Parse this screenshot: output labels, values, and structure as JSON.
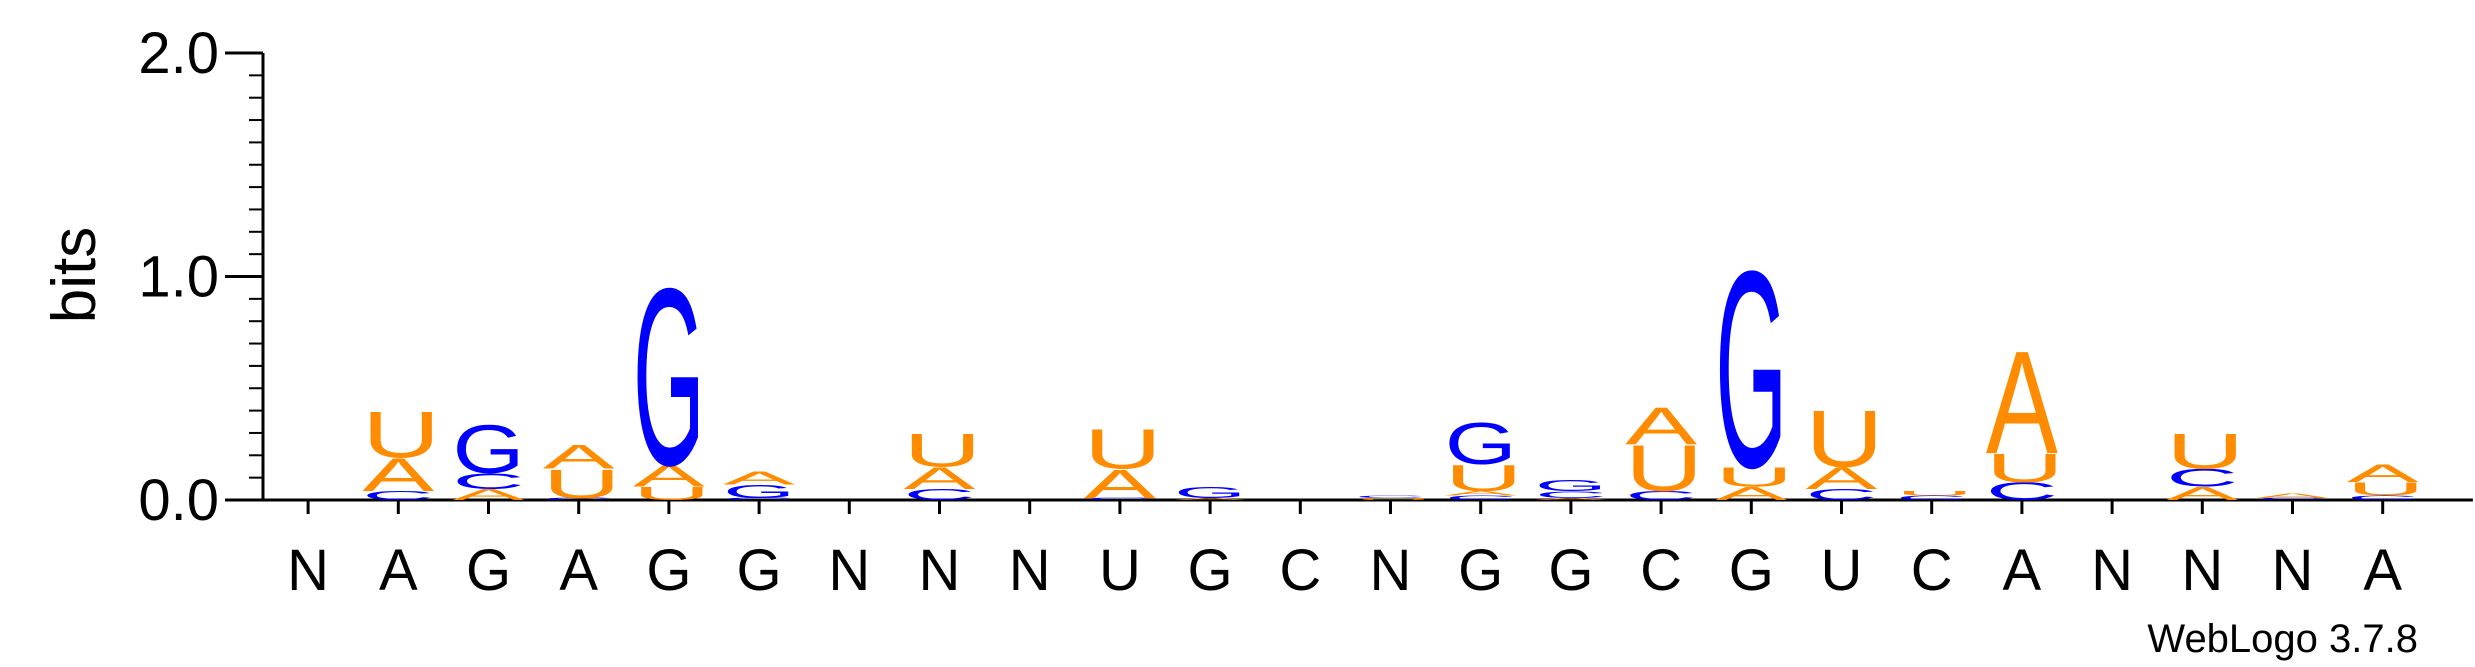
{
  "chart_data": {
    "type": "sequence_logo",
    "ylabel": "bits",
    "ylim": [
      0,
      2.0
    ],
    "yticks": [
      {
        "value": 0.0,
        "label": "0.0"
      },
      {
        "value": 1.0,
        "label": "1.0"
      },
      {
        "value": 2.0,
        "label": "2.0"
      }
    ],
    "positions": [
      "N",
      "A",
      "G",
      "A",
      "G",
      "G",
      "N",
      "N",
      "N",
      "U",
      "G",
      "C",
      "N",
      "G",
      "G",
      "C",
      "G",
      "U",
      "C",
      "A",
      "N",
      "N",
      "N",
      "A"
    ],
    "stacks": [
      [],
      [
        {
          "l": "C",
          "h": 0.04
        },
        {
          "l": "A",
          "h": 0.15
        },
        {
          "l": "U",
          "h": 0.21
        }
      ],
      [
        {
          "l": "A",
          "h": 0.05
        },
        {
          "l": "C",
          "h": 0.07
        },
        {
          "l": "G",
          "h": 0.22
        }
      ],
      [
        {
          "l": "C",
          "h": 0.01
        },
        {
          "l": "U",
          "h": 0.13
        },
        {
          "l": "A",
          "h": 0.11
        }
      ],
      [
        {
          "l": "U",
          "h": 0.06
        },
        {
          "l": "A",
          "h": 0.1
        },
        {
          "l": "G",
          "h": 0.81
        }
      ],
      [
        {
          "l": "C",
          "h": 0.01
        },
        {
          "l": "G",
          "h": 0.06
        },
        {
          "l": "A",
          "h": 0.06
        }
      ],
      [],
      [
        {
          "l": "C",
          "h": 0.05
        },
        {
          "l": "A",
          "h": 0.1
        },
        {
          "l": "U",
          "h": 0.15
        }
      ],
      [],
      [
        {
          "l": "C",
          "h": 0.01
        },
        {
          "l": "A",
          "h": 0.13
        },
        {
          "l": "U",
          "h": 0.18
        }
      ],
      [
        {
          "l": "A",
          "h": 0.01
        },
        {
          "l": "G",
          "h": 0.05
        }
      ],
      [],
      [
        {
          "l": "U",
          "h": 0.01
        },
        {
          "l": "C",
          "h": 0.01
        }
      ],
      [
        {
          "l": "C",
          "h": 0.02
        },
        {
          "l": "A",
          "h": 0.02
        },
        {
          "l": "U",
          "h": 0.12
        },
        {
          "l": "G",
          "h": 0.19
        }
      ],
      [
        {
          "l": "A",
          "h": 0.01
        },
        {
          "l": "C",
          "h": 0.03
        },
        {
          "l": "G",
          "h": 0.05
        }
      ],
      [
        {
          "l": "C",
          "h": 0.04
        },
        {
          "l": "U",
          "h": 0.21
        },
        {
          "l": "A",
          "h": 0.17
        }
      ],
      [
        {
          "l": "A",
          "h": 0.06
        },
        {
          "l": "U",
          "h": 0.09
        },
        {
          "l": "G",
          "h": 0.9
        }
      ],
      [
        {
          "l": "C",
          "h": 0.05
        },
        {
          "l": "A",
          "h": 0.1
        },
        {
          "l": "U",
          "h": 0.26
        }
      ],
      [
        {
          "l": "C",
          "h": 0.02
        },
        {
          "l": "U",
          "h": 0.02
        }
      ],
      [
        {
          "l": "C",
          "h": 0.08
        },
        {
          "l": "U",
          "h": 0.13
        },
        {
          "l": "A",
          "h": 0.47
        }
      ],
      [],
      [
        {
          "l": "A",
          "h": 0.06
        },
        {
          "l": "C",
          "h": 0.08
        },
        {
          "l": "U",
          "h": 0.16
        }
      ],
      [
        {
          "l": "C",
          "h": 0.01
        },
        {
          "l": "A",
          "h": 0.02
        }
      ],
      [
        {
          "l": "C",
          "h": 0.02
        },
        {
          "l": "U",
          "h": 0.06
        },
        {
          "l": "A",
          "h": 0.08
        }
      ]
    ],
    "colors": {
      "A": "#ff8c00",
      "U": "#ff8c00",
      "G": "#0000ff",
      "C": "#0000ff"
    }
  },
  "footer": {
    "credit": "WebLogo 3.7.8"
  }
}
